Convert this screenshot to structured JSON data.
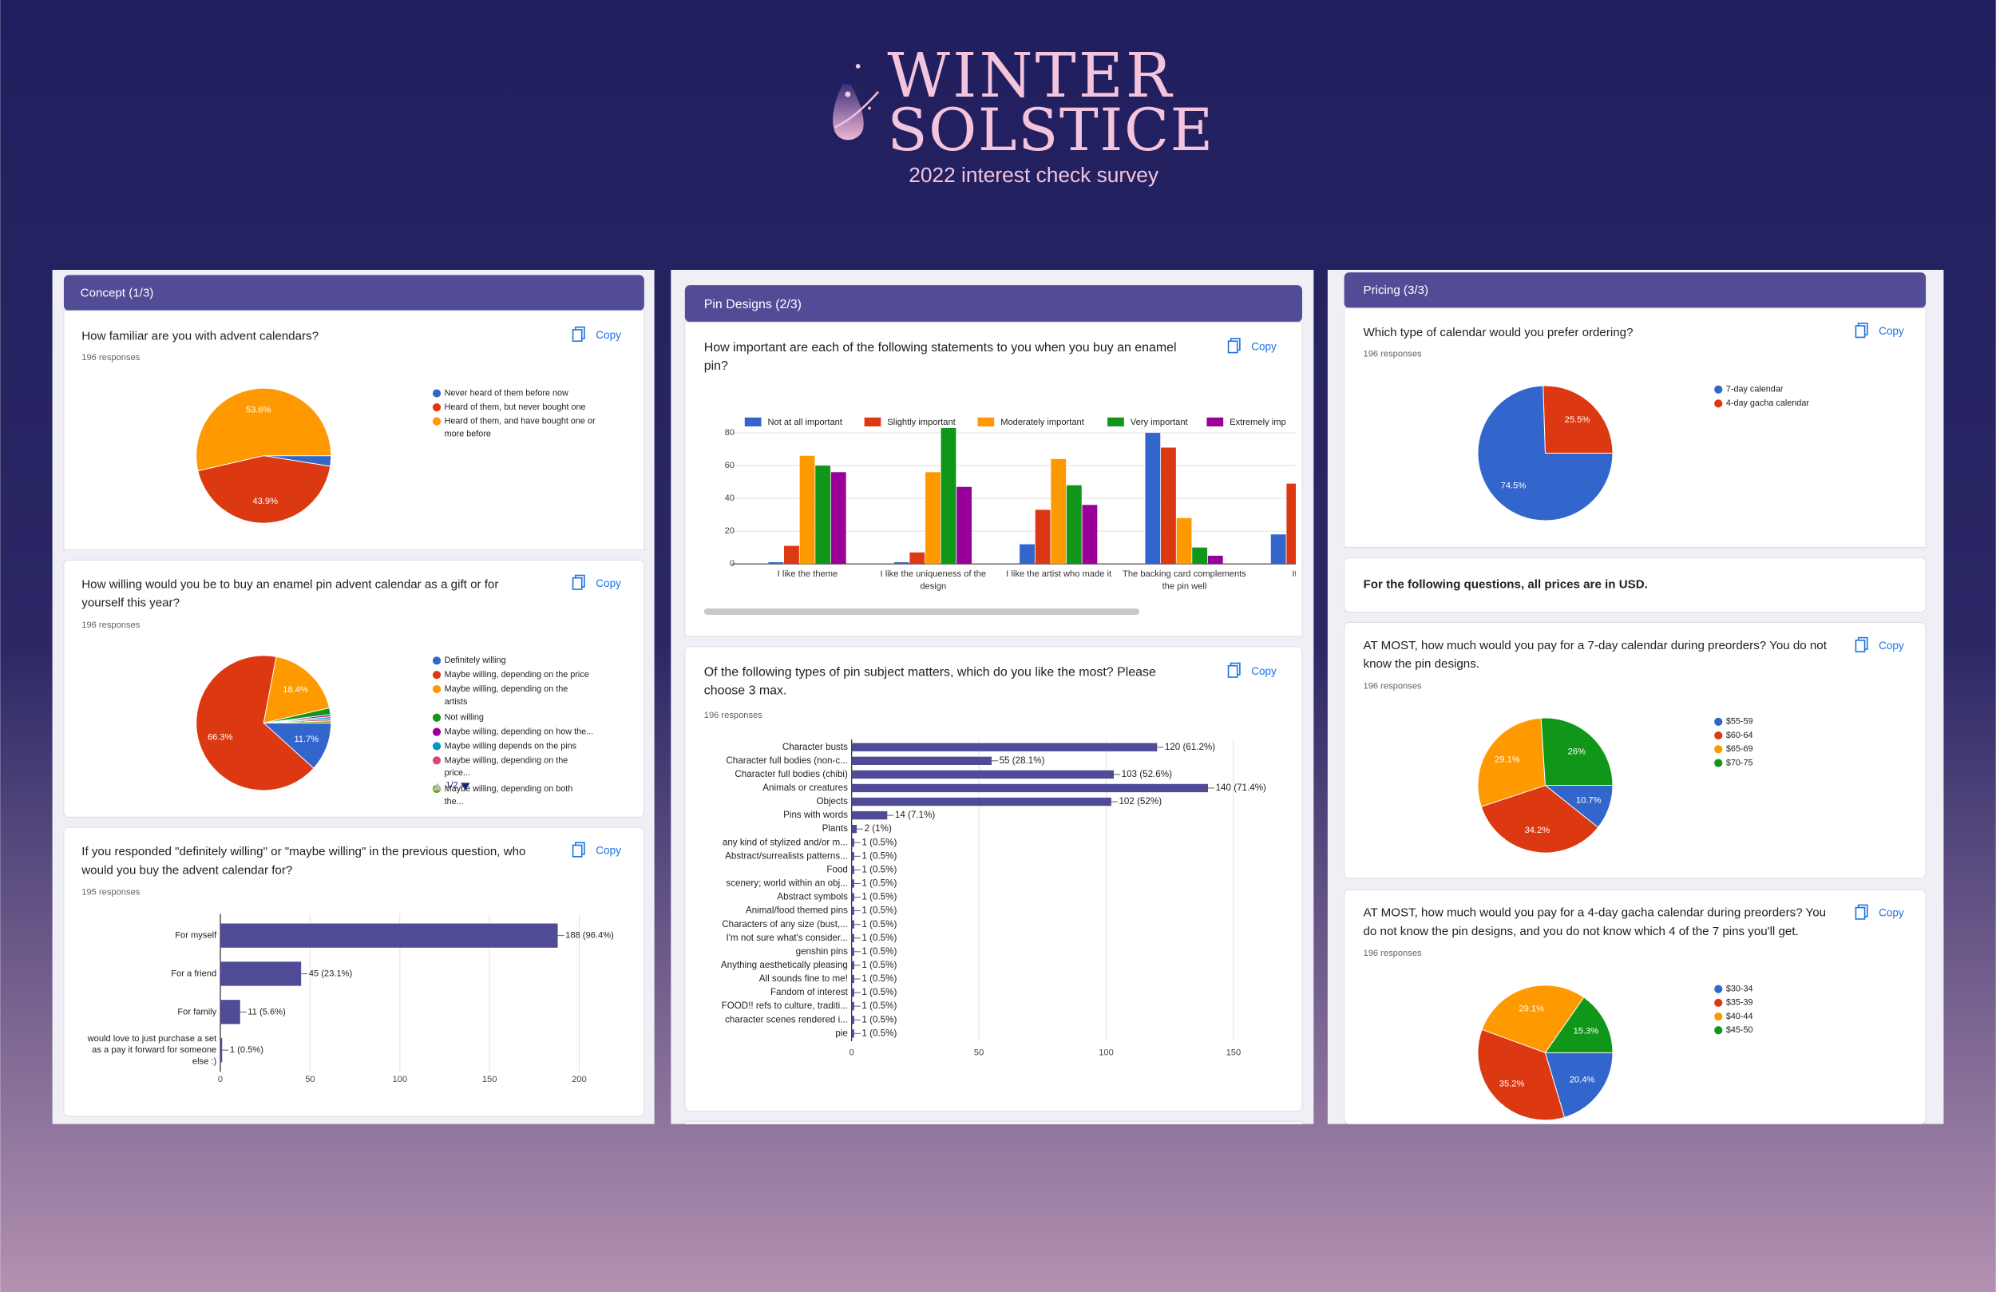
{
  "header": {
    "title_line1": "WINTER",
    "title_line2": "SOLSTICE",
    "subtitle": "2022 interest check survey"
  },
  "panels": [
    "Concept (1/3)",
    "Pin Designs (2/3)",
    "Pricing (3/3)"
  ],
  "copy_label": "Copy",
  "note": "For the following questions, all prices are in USD.",
  "chart_data": [
    {
      "type": "pie",
      "title": "How familiar are you with advent calendars?",
      "subtitle": "196 responses",
      "categories": [
        "Never heard of them before now",
        "Heard of them, but never bought one",
        "Heard of them, and have bought one or more before"
      ],
      "values": [
        2.5,
        43.9,
        53.6
      ],
      "value_labels": [
        null,
        "43.9%",
        "53.6%"
      ],
      "colors": [
        "#3366cc",
        "#dc3912",
        "#ff9900"
      ],
      "legend": "right"
    },
    {
      "type": "pie",
      "title": "How willing would you be to buy an enamel pin advent calendar as a gift or for yourself this year?",
      "subtitle": "196 responses",
      "categories": [
        "Definitely willing",
        "Maybe willing, depending on the price",
        "Maybe willing, depending on the artists",
        "Not willing",
        "Maybe willing, depending on how the...",
        "Maybe willing depends on the pins",
        "Maybe willing, depending on the price...",
        "Maybe willing, depending on both the..."
      ],
      "values": [
        11.7,
        66.3,
        18.4,
        1.6,
        0.5,
        0.5,
        0.5,
        0.5
      ],
      "value_labels": [
        "11.7%",
        "66.3%",
        "18.4%",
        null,
        null,
        null,
        null,
        null
      ],
      "colors": [
        "#3366cc",
        "#dc3912",
        "#ff9900",
        "#109618",
        "#990099",
        "#0099c6",
        "#dd4477",
        "#66aa00"
      ],
      "legend": "right",
      "legend_page": "1/2"
    },
    {
      "type": "barh",
      "title": "If you responded \"definitely willing\" or \"maybe willing\" in the previous question, who would you buy the advent calendar for?",
      "subtitle": "195 responses",
      "categories": [
        "For myself",
        "For a friend",
        "For family",
        "would love to just purchase a set as a pay it forward for someone else :)"
      ],
      "values": [
        188,
        45,
        11,
        1
      ],
      "value_labels": [
        "188 (96.4%)",
        "45 (23.1%)",
        "11 (5.6%)",
        "1 (0.5%)"
      ],
      "color": "#4f4b97",
      "xlim": [
        0,
        200
      ],
      "xticks": [
        0,
        50,
        100,
        150,
        200
      ],
      "grid": true
    },
    {
      "type": "bar",
      "title": "How important are each of the following statements to you when you buy an enamel pin?",
      "categories": [
        "I like the theme",
        "I like the uniqueness of the design",
        "I like the artist who made it",
        "The backing card complements the pin well",
        "It's not to"
      ],
      "series": [
        {
          "name": "Not at all important",
          "color": "#3366cc",
          "values": [
            1,
            1,
            12,
            80,
            18
          ]
        },
        {
          "name": "Slightly important",
          "color": "#dc3912",
          "values": [
            11,
            7,
            33,
            71,
            49
          ]
        },
        {
          "name": "Moderately important",
          "color": "#ff9900",
          "values": [
            66,
            56,
            64,
            28,
            null
          ]
        },
        {
          "name": "Very important",
          "color": "#109618",
          "values": [
            60,
            83,
            48,
            10,
            null
          ]
        },
        {
          "name": "Extremely imp",
          "color": "#990099",
          "values": [
            56,
            47,
            36,
            5,
            null
          ]
        }
      ],
      "ylim": [
        0,
        85
      ],
      "yticks": [
        0,
        20,
        40,
        60,
        80
      ],
      "grid": true,
      "legend": "top"
    },
    {
      "type": "barh",
      "title": "Of the following types of pin subject matters, which do you like the most? Please choose 3 max.",
      "subtitle": "196 responses",
      "categories": [
        "Character busts",
        "Character full bodies (non-c...",
        "Character full bodies (chibi)",
        "Animals or creatures",
        "Objects",
        "Pins with words",
        "Plants",
        "any kind of stylized and/or m...",
        "Abstract/surrealists patterns...",
        "Food",
        "scenery; world within an obj...",
        "Abstract symbols",
        "Animal/food themed pins",
        "Characters of any size (bust,...",
        "I'm not sure what's consider...",
        "genshin pins",
        "Anything aesthetically pleasing",
        "All sounds fine to me!",
        "Fandom of interest",
        "FOOD!! refs to culture, traditi...",
        "character scenes rendered i...",
        "pie"
      ],
      "values": [
        120,
        55,
        103,
        140,
        102,
        14,
        2,
        1,
        1,
        1,
        1,
        1,
        1,
        1,
        1,
        1,
        1,
        1,
        1,
        1,
        1,
        1
      ],
      "value_labels": [
        "120 (61.2%)",
        "55 (28.1%)",
        "103 (52.6%)",
        "140 (71.4%)",
        "102 (52%)",
        "14 (7.1%)",
        "2 (1%)",
        "1 (0.5%)",
        "1 (0.5%)",
        "1 (0.5%)",
        "1 (0.5%)",
        "1 (0.5%)",
        "1 (0.5%)",
        "1 (0.5%)",
        "1 (0.5%)",
        "1 (0.5%)",
        "1 (0.5%)",
        "1 (0.5%)",
        "1 (0.5%)",
        "1 (0.5%)",
        "1 (0.5%)",
        "1 (0.5%)"
      ],
      "color": "#4f4b97",
      "xlim": [
        0,
        150
      ],
      "xticks": [
        0,
        50,
        100,
        150
      ],
      "grid": true
    },
    {
      "type": "pie",
      "title": "Which type of calendar would you prefer ordering?",
      "subtitle": "196 responses",
      "categories": [
        "7-day calendar",
        "4-day gacha calendar"
      ],
      "values": [
        74.5,
        25.5
      ],
      "value_labels": [
        "74.5%",
        "25.5%"
      ],
      "colors": [
        "#3366cc",
        "#dc3912"
      ],
      "legend": "right"
    },
    {
      "type": "pie",
      "title": "AT MOST, how much would you pay for a 7-day calendar during preorders? You do not know the pin designs.",
      "subtitle": "196 responses",
      "categories": [
        "$55-59",
        "$60-64",
        "$65-69",
        "$70-75"
      ],
      "values": [
        10.7,
        34.2,
        29.1,
        26
      ],
      "value_labels": [
        "10.7%",
        "34.2%",
        "29.1%",
        "26%"
      ],
      "colors": [
        "#3366cc",
        "#dc3912",
        "#ff9900",
        "#109618"
      ],
      "legend": "right"
    },
    {
      "type": "pie",
      "title": "AT MOST, how much would you pay for a 4-day gacha calendar during preorders? You do not know the pin designs, and you do not know which 4 of the 7 pins you'll get.",
      "subtitle": "196 responses",
      "categories": [
        "$30-34",
        "$35-39",
        "$40-44",
        "$45-50"
      ],
      "values": [
        20.4,
        35.2,
        29.1,
        15.3
      ],
      "value_labels": [
        "20.4%",
        "35.2%",
        "29.1%",
        "15.3%"
      ],
      "colors": [
        "#3366cc",
        "#dc3912",
        "#ff9900",
        "#109618"
      ],
      "legend": "right"
    }
  ]
}
